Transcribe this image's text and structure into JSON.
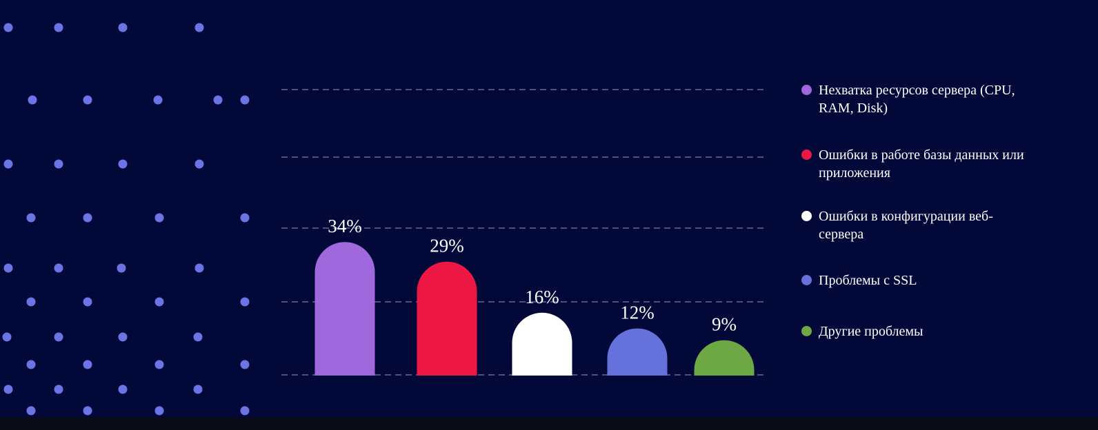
{
  "chart_data": {
    "type": "bar",
    "categories": [
      "Нехватка ресурсов сервера (CPU, RAM, Disk)",
      "Ошибки в работе базы данных или приложения",
      "Ошибки в конфигурации веб-сервера",
      "Проблемы с SSL",
      "Другие проблемы"
    ],
    "values": [
      34,
      29,
      16,
      12,
      9
    ],
    "value_labels": [
      "34%",
      "29%",
      "16%",
      "12%",
      "9%"
    ],
    "colors": [
      "#9f68dc",
      "#ec1744",
      "#ffffff",
      "#6672dc",
      "#6ea844"
    ]
  }
}
